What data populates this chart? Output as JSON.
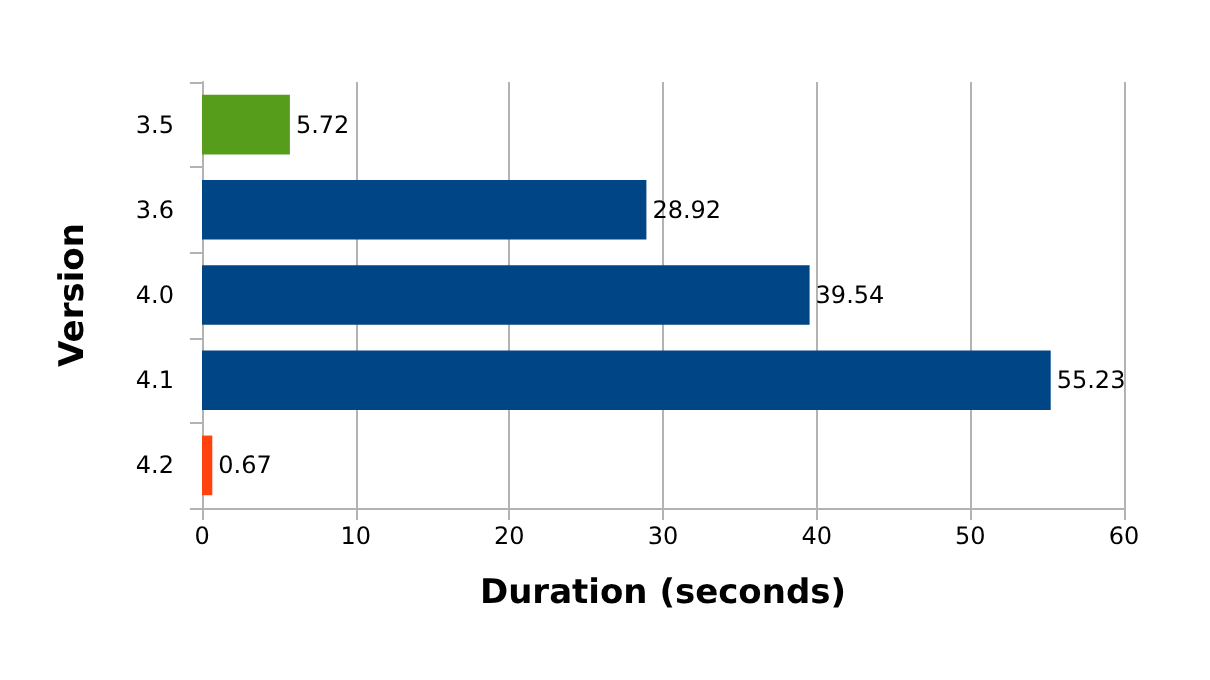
{
  "chart_data": {
    "type": "bar",
    "orientation": "horizontal",
    "xlabel": "Duration (seconds)",
    "ylabel": "Version",
    "categories": [
      "3.5",
      "3.6",
      "4.0",
      "4.1",
      "4.2"
    ],
    "values": [
      5.72,
      28.92,
      39.54,
      55.23,
      0.67
    ],
    "colors": [
      "#579d1c",
      "#004586",
      "#004586",
      "#004586",
      "#ff420e"
    ],
    "xlim": [
      0,
      60
    ],
    "xticks": [
      0,
      10,
      20,
      30,
      40,
      50,
      60
    ],
    "grid": "x",
    "data_labels": true
  }
}
